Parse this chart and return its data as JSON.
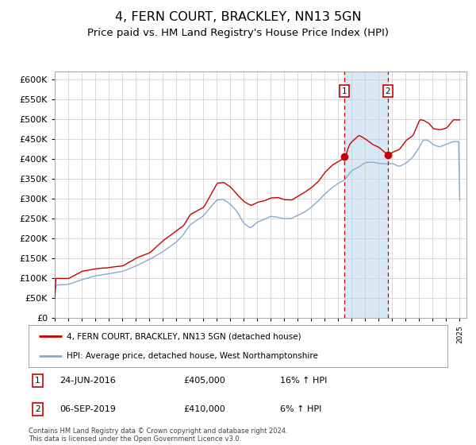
{
  "title": "4, FERN COURT, BRACKLEY, NN13 5GN",
  "subtitle": "Price paid vs. HM Land Registry's House Price Index (HPI)",
  "title_fontsize": 11.5,
  "subtitle_fontsize": 9.5,
  "ylim": [
    0,
    620000
  ],
  "yticks": [
    0,
    50000,
    100000,
    150000,
    200000,
    250000,
    300000,
    350000,
    400000,
    450000,
    500000,
    550000,
    600000
  ],
  "sale1_date": 2016.47,
  "sale1_price": 405000,
  "sale2_date": 2019.67,
  "sale2_price": 410000,
  "red_line_color": "#cc0000",
  "blue_line_color": "#88aacc",
  "marker_color": "#cc0000",
  "shaded_region_color": "#d8e8f5",
  "dashed_line_color": "#cc0000",
  "grid_color": "#cccccc",
  "background_color": "#ffffff",
  "legend_label_red": "4, FERN COURT, BRACKLEY, NN13 5GN (detached house)",
  "legend_label_blue": "HPI: Average price, detached house, West Northamptonshire",
  "sale1_label": "24-JUN-2016",
  "sale1_amount": "£405,000",
  "sale1_hpi": "16% ↑ HPI",
  "sale2_label": "06-SEP-2019",
  "sale2_amount": "£410,000",
  "sale2_hpi": "6% ↑ HPI",
  "footer": "Contains HM Land Registry data © Crown copyright and database right 2024.\nThis data is licensed under the Open Government Licence v3.0.",
  "red_waypoints_t": [
    1995,
    1996,
    1997,
    1998,
    1999,
    2000,
    2001,
    2002,
    2003,
    2004,
    2004.5,
    2005,
    2006,
    2007,
    2007.5,
    2008,
    2008.5,
    2009,
    2009.5,
    2010,
    2010.5,
    2011,
    2011.5,
    2012,
    2012.5,
    2013,
    2013.5,
    2014,
    2014.5,
    2015,
    2015.5,
    2016,
    2016.47,
    2016.8,
    2017,
    2017.5,
    2018,
    2018.5,
    2019,
    2019.67,
    2020,
    2020.5,
    2021,
    2021.5,
    2022,
    2022.3,
    2022.7,
    2023,
    2023.5,
    2024,
    2024.5
  ],
  "red_waypoints_v": [
    100000,
    100000,
    118000,
    125000,
    128000,
    132000,
    152000,
    165000,
    195000,
    220000,
    232000,
    260000,
    278000,
    340000,
    342000,
    330000,
    310000,
    293000,
    284000,
    292000,
    296000,
    303000,
    304000,
    299000,
    298000,
    308000,
    318000,
    330000,
    345000,
    368000,
    385000,
    395000,
    405000,
    438000,
    445000,
    460000,
    450000,
    438000,
    430000,
    410000,
    418000,
    425000,
    448000,
    460000,
    500000,
    498000,
    490000,
    478000,
    475000,
    480000,
    500000
  ],
  "blue_waypoints_t": [
    1995,
    1996,
    1997,
    1998,
    1999,
    2000,
    2001,
    2002,
    2003,
    2004,
    2004.5,
    2005,
    2006,
    2007,
    2007.5,
    2008,
    2008.5,
    2009,
    2009.5,
    2010,
    2010.5,
    2011,
    2011.5,
    2012,
    2012.5,
    2013,
    2013.5,
    2014,
    2014.5,
    2015,
    2015.5,
    2016,
    2016.47,
    2017,
    2017.5,
    2018,
    2018.5,
    2019,
    2019.67,
    2020,
    2020.5,
    2021,
    2021.5,
    2022,
    2022.3,
    2022.7,
    2023,
    2023.5,
    2024,
    2024.5
  ],
  "blue_waypoints_v": [
    83000,
    85000,
    97000,
    107000,
    112000,
    118000,
    132000,
    148000,
    168000,
    192000,
    210000,
    235000,
    258000,
    298000,
    300000,
    288000,
    270000,
    240000,
    228000,
    243000,
    250000,
    258000,
    256000,
    252000,
    252000,
    260000,
    268000,
    280000,
    295000,
    313000,
    328000,
    340000,
    348000,
    372000,
    380000,
    392000,
    393000,
    390000,
    388000,
    390000,
    382000,
    390000,
    405000,
    430000,
    450000,
    448000,
    438000,
    432000,
    438000,
    445000
  ]
}
